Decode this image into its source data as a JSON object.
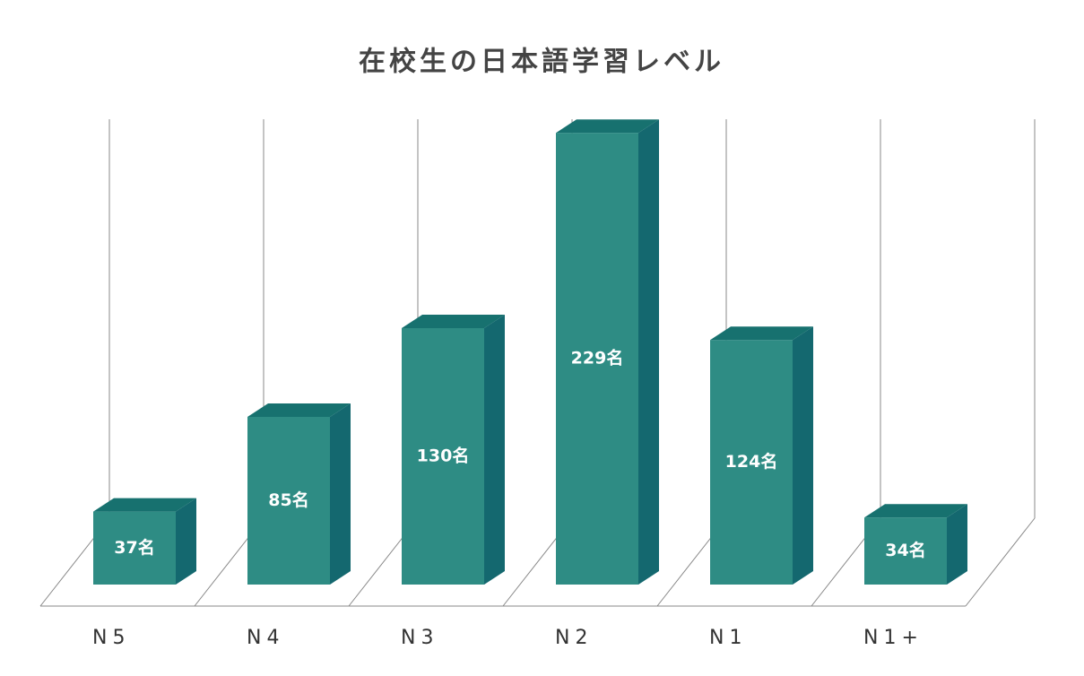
{
  "chart_data": {
    "type": "bar3d",
    "title": "在校生の日本語学習レベル",
    "categories": [
      "N5",
      "N4",
      "N3",
      "N2",
      "N1",
      "N1+"
    ],
    "values": [
      37,
      85,
      130,
      229,
      124,
      34
    ],
    "value_labels": [
      "37名",
      "85名",
      "130名",
      "229名",
      "124名",
      "34名"
    ],
    "color": "#2e8c84"
  }
}
